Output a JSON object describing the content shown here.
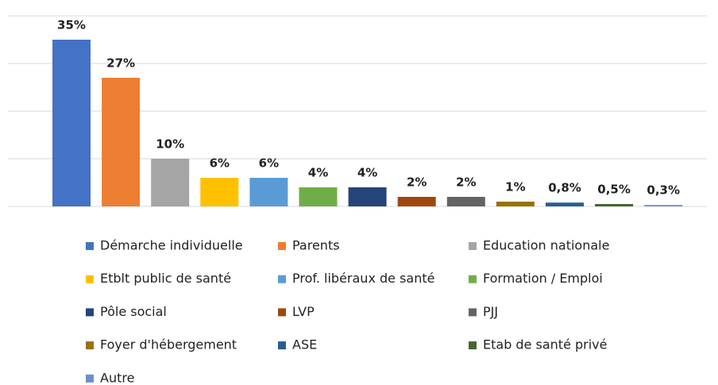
{
  "chart_data": {
    "type": "bar",
    "categories": [
      "Démarche individuelle",
      "Parents",
      "Education nationale",
      "Etblt public de santé",
      "Prof. libéraux de santé",
      "Formation / Emploi",
      "Pôle social",
      "LVP",
      "PJJ",
      "Foyer d'hébergement",
      "ASE",
      "Etab de santé privé",
      "Autre"
    ],
    "values": [
      35,
      27,
      10,
      6,
      6,
      4,
      4,
      2,
      2,
      1,
      0.8,
      0.5,
      0.3
    ],
    "value_labels": [
      "35%",
      "27%",
      "10%",
      "6%",
      "6%",
      "4%",
      "4%",
      "2%",
      "2%",
      "1%",
      "0,8%",
      "0,5%",
      "0,3%"
    ],
    "colors": [
      "#4472c4",
      "#ed7d31",
      "#a5a5a5",
      "#ffc000",
      "#5b9bd5",
      "#70ad47",
      "#264478",
      "#9e480e",
      "#636363",
      "#997300",
      "#255e91",
      "#43682b",
      "#698ed0"
    ],
    "ylim": [
      0,
      40
    ],
    "yticks": [
      0,
      10,
      20,
      30,
      40
    ],
    "grid": true
  }
}
